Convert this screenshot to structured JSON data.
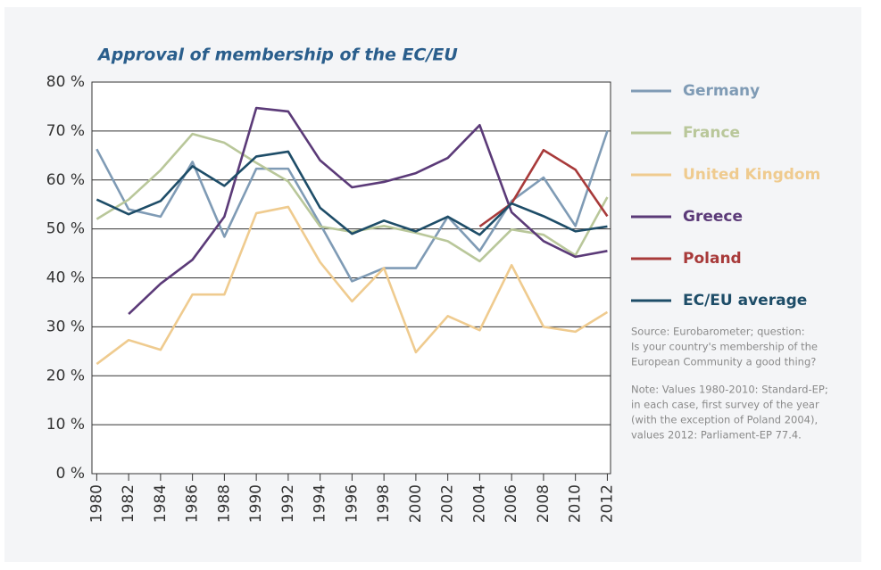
{
  "chart_data": {
    "type": "line",
    "title": "Approval of membership of the EC/EU",
    "x": [
      1980,
      1982,
      1984,
      1986,
      1988,
      1990,
      1992,
      1994,
      1996,
      1998,
      2000,
      2002,
      2004,
      2006,
      2008,
      2010,
      2012
    ],
    "xlim": [
      1979.7,
      2012.2
    ],
    "xticks": [
      1980,
      1982,
      1984,
      1986,
      1988,
      1990,
      1992,
      1994,
      1996,
      1998,
      2000,
      2002,
      2004,
      2006,
      2008,
      2010,
      2012
    ],
    "ylim": [
      0,
      80
    ],
    "yticks": [
      {
        "value": 0,
        "label": "0 %"
      },
      {
        "value": 10,
        "label": "10 %"
      },
      {
        "value": 20,
        "label": "20 %"
      },
      {
        "value": 30,
        "label": "30 %"
      },
      {
        "value": 40,
        "label": "40 %"
      },
      {
        "value": 50,
        "label": "50 %"
      },
      {
        "value": 60,
        "label": "60 %"
      },
      {
        "value": 70,
        "label": "70 %"
      },
      {
        "value": 80,
        "label": "80 %"
      }
    ],
    "grid": true,
    "legend": "right",
    "series": [
      {
        "name": "Germany",
        "color": "#7f9bb5",
        "values": [
          66.3,
          54,
          52.5,
          63.7,
          48.4,
          62.3,
          62.3,
          51,
          39.3,
          42,
          42,
          52.5,
          45.5,
          55.7,
          60.5,
          50.6,
          70
        ]
      },
      {
        "name": "France",
        "color": "#b9c79a",
        "values": [
          52,
          56,
          62,
          69.4,
          67.6,
          63.5,
          59.7,
          50.5,
          49.4,
          50.6,
          49.2,
          47.5,
          43.4,
          49.9,
          48.8,
          44.6,
          56.5
        ]
      },
      {
        "name": "United Kingdom",
        "color": "#efcb8f",
        "values": [
          22.4,
          27.3,
          25.3,
          36.6,
          36.6,
          53.2,
          54.5,
          43.2,
          35.2,
          42,
          24.8,
          32.2,
          29.3,
          42.6,
          30,
          29,
          33
        ]
      },
      {
        "name": "Greece",
        "color": "#5b3a78",
        "values": [
          null,
          32.6,
          38.8,
          43.7,
          52.5,
          74.7,
          74,
          64,
          58.5,
          59.6,
          61.4,
          64.5,
          71.2,
          53.4,
          47.5,
          44.3,
          45.5
        ]
      },
      {
        "name": "Poland",
        "color": "#a83a3a",
        "values": [
          null,
          null,
          null,
          null,
          null,
          null,
          null,
          null,
          null,
          null,
          null,
          null,
          50.5,
          55.2,
          66.1,
          62.1,
          52.6
        ]
      },
      {
        "name": "EC/EU average",
        "color": "#1e4d68",
        "values": [
          56,
          53,
          55.7,
          62.8,
          58.8,
          64.8,
          65.8,
          54.3,
          49,
          51.7,
          49.5,
          52.5,
          48.8,
          55.2,
          52.6,
          49.5,
          50.5
        ]
      }
    ],
    "source": [
      "Source: Eurobarometer; question:",
      "Is your country's membership of the",
      "European Community a good thing?"
    ],
    "note": [
      "Note: Values 1980-2010: Standard-EP;",
      "in each case, first survey of the year",
      "(with the exception of Poland 2004),",
      "values 2012: Parliament-EP 77.4."
    ]
  }
}
